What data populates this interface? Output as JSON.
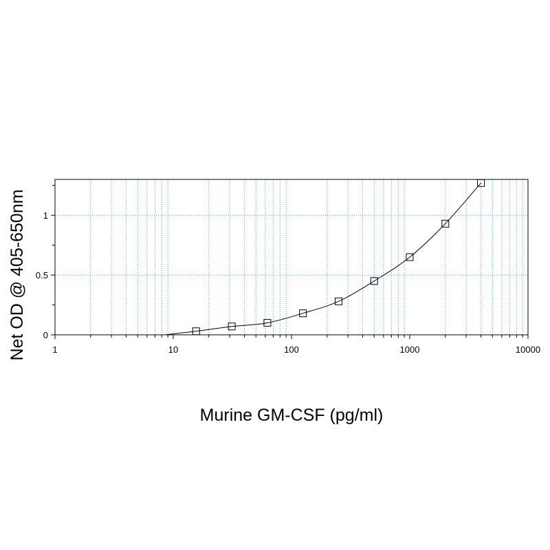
{
  "chart_data": {
    "type": "scatter",
    "xlabel": "Murine GM-CSF (pg/ml)",
    "ylabel": "Net OD @ 405-650nm",
    "x_scale": "log",
    "xlim": [
      1,
      10000
    ],
    "ylim": [
      0,
      1.3
    ],
    "x_ticks": [
      "1",
      "10",
      "100",
      "1000",
      "10000"
    ],
    "y_ticks": [
      "0",
      "0.5",
      "1"
    ],
    "grid": true,
    "grid_color": "#3aa6d6",
    "fit_line": true,
    "series": [
      {
        "marker": "square",
        "x": [
          15.6,
          31.25,
          62.5,
          125,
          250,
          500,
          1000,
          2000,
          4000
        ],
        "y": [
          0.03,
          0.07,
          0.1,
          0.18,
          0.28,
          0.45,
          0.65,
          0.93,
          1.27
        ]
      }
    ]
  }
}
